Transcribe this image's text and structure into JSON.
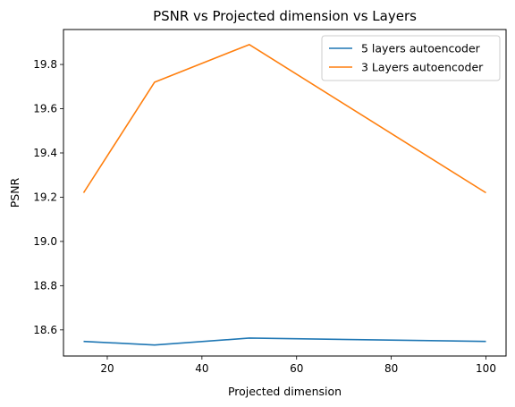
{
  "chart_data": {
    "type": "line",
    "title": "PSNR vs Projected dimension vs Layers",
    "xlabel": "Projected dimension",
    "ylabel": "PSNR",
    "xlim": [
      10.75,
      104.25
    ],
    "ylim": [
      18.482,
      19.958
    ],
    "xticks": [
      20,
      40,
      60,
      80,
      100
    ],
    "yticks": [
      18.6,
      18.8,
      19.0,
      19.2,
      19.4,
      19.6,
      19.8
    ],
    "grid": false,
    "legend_position": "top-right",
    "series": [
      {
        "name": "5 layers autoencoder",
        "color": "#1f77b4",
        "x": [
          15,
          30,
          50,
          100
        ],
        "y": [
          18.548,
          18.532,
          18.563,
          18.548
        ]
      },
      {
        "name": "3 Layers autoencoder",
        "color": "#ff7f0e",
        "x": [
          15,
          30,
          50,
          100
        ],
        "y": [
          19.22,
          19.72,
          19.89,
          19.22
        ]
      }
    ]
  }
}
